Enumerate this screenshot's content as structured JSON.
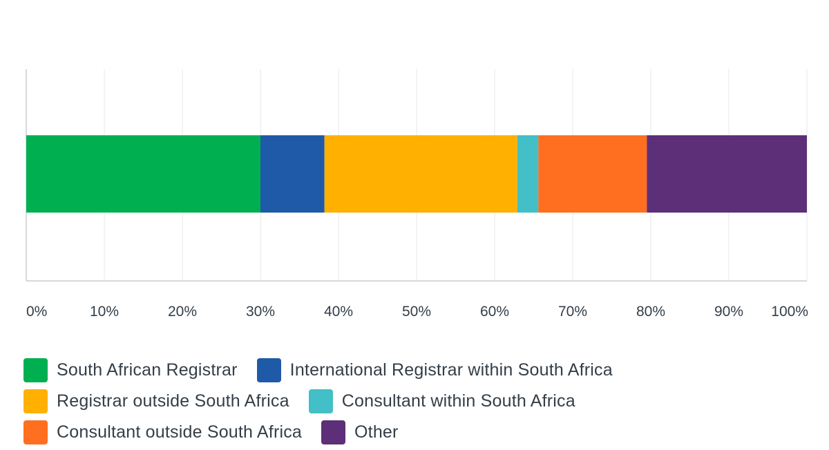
{
  "chart_data": {
    "type": "bar",
    "orientation": "horizontal",
    "stacked": true,
    "categories": [
      ""
    ],
    "series": [
      {
        "name": "South African Registrar",
        "values": [
          30.0
        ],
        "color": "#00b050"
      },
      {
        "name": "International Registrar within South Africa",
        "values": [
          8.2
        ],
        "color": "#1f5aa8"
      },
      {
        "name": "Registrar outside South Africa",
        "values": [
          24.7
        ],
        "color": "#ffb000"
      },
      {
        "name": "Consultant within South Africa",
        "values": [
          2.7
        ],
        "color": "#42bfc7"
      },
      {
        "name": "Consultant outside South Africa",
        "values": [
          13.9
        ],
        "color": "#ff6f1f"
      },
      {
        "name": "Other",
        "values": [
          20.5
        ],
        "color": "#5c2f78"
      }
    ],
    "xlim": [
      0,
      100
    ],
    "x_ticks": [
      "0%",
      "10%",
      "20%",
      "30%",
      "40%",
      "50%",
      "60%",
      "70%",
      "80%",
      "90%",
      "100%"
    ],
    "grid": true,
    "legend_position": "bottom",
    "title": "",
    "xlabel": "",
    "ylabel": ""
  },
  "legend_rows": [
    [
      0,
      1
    ],
    [
      2,
      3
    ],
    [
      4,
      5
    ]
  ]
}
